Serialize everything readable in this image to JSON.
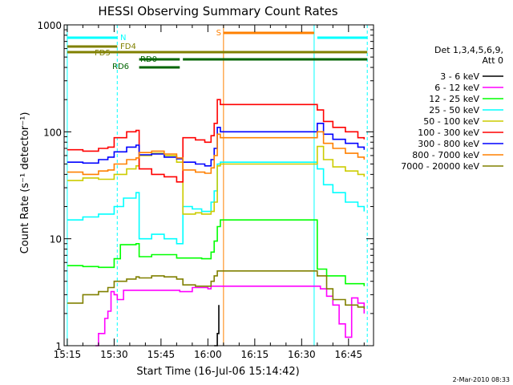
{
  "chart_data": {
    "type": "line",
    "title": "HESSI Observing Summary Count Rates",
    "xlabel": "Start Time (16-Jul-06 15:14:42)",
    "ylabel": "Count Rate (s⁻¹ detector⁻¹)",
    "yscale": "log",
    "xlim": [
      "15:14:42",
      "16:53:00"
    ],
    "ylim": [
      1,
      1000
    ],
    "x_ticks": [
      "15:15",
      "15:30",
      "15:45",
      "16:00",
      "16:15",
      "16:30",
      "16:45"
    ],
    "y_ticks": [
      "1",
      "10",
      "100",
      "1000"
    ],
    "grid": false,
    "legend_position": "right",
    "legend_header": [
      "Det 1,3,4,5,6,9,",
      "Att 0"
    ],
    "footer_date": "2-Mar-2010 08:33",
    "flags": [
      {
        "label": "N",
        "color": "#00ffff",
        "segments": [
          [
            "15:15",
            "15:31"
          ],
          [
            "16:35",
            "16:51"
          ]
        ]
      },
      {
        "label": "FD4",
        "color": "#808000",
        "segments": [
          [
            "15:15",
            "15:31"
          ]
        ]
      },
      {
        "label": "FD5",
        "color": "#808000",
        "segments": [
          [
            "15:15",
            "16:51"
          ]
        ]
      },
      {
        "label": "RD0",
        "color": "#006400",
        "segments": [
          [
            "15:38",
            "15:51"
          ],
          [
            "15:52",
            "16:51"
          ]
        ]
      },
      {
        "label": "RD6",
        "color": "#006400",
        "segments": [
          [
            "15:38",
            "15:51"
          ]
        ]
      },
      {
        "label": "S",
        "color": "#ff8000",
        "segments": [
          [
            "16:05",
            "16:34"
          ]
        ]
      }
    ],
    "series": [
      {
        "name": "3 - 6 keV",
        "color": "#000000",
        "points": [
          [
            "16:02",
            1
          ],
          [
            "16:03",
            1.3
          ],
          [
            "16:03.5",
            2.4
          ]
        ]
      },
      {
        "name": "6 - 12 keV",
        "color": "#ff00ff",
        "points": [
          [
            "15:24",
            1
          ],
          [
            "15:25",
            1.3
          ],
          [
            "15:27",
            1.8
          ],
          [
            "15:28",
            2.1
          ],
          [
            "15:29",
            3.2
          ],
          [
            "15:30",
            3
          ],
          [
            "15:31",
            2.7
          ],
          [
            "15:33",
            3.3
          ],
          [
            "15:38",
            3.3
          ],
          [
            "15:45",
            3.3
          ],
          [
            "15:51",
            3.2
          ],
          [
            "15:55",
            3.5
          ],
          [
            "16:00",
            3.4
          ],
          [
            "16:01",
            3.6
          ],
          [
            "16:36",
            3.4
          ],
          [
            "16:38",
            2.9
          ],
          [
            "16:40",
            2.4
          ],
          [
            "16:42",
            1.6
          ],
          [
            "16:44",
            1.2
          ],
          [
            "16:46",
            2.8
          ],
          [
            "16:48",
            2.5
          ],
          [
            "16:50",
            2
          ]
        ]
      },
      {
        "name": "12 - 25 keV",
        "color": "#00ff00",
        "points": [
          [
            "15:15",
            5.6
          ],
          [
            "15:20",
            5.5
          ],
          [
            "15:25",
            5.4
          ],
          [
            "15:30",
            6.5
          ],
          [
            "15:32",
            8.8
          ],
          [
            "15:37",
            9
          ],
          [
            "15:38",
            6.8
          ],
          [
            "15:42",
            7.1
          ],
          [
            "15:50",
            6.6
          ],
          [
            "15:52",
            6.6
          ],
          [
            "15:58",
            6.5
          ],
          [
            "16:01",
            7.5
          ],
          [
            "16:02",
            9.5
          ],
          [
            "16:03",
            13
          ],
          [
            "16:04",
            15
          ],
          [
            "16:35",
            5.2
          ],
          [
            "16:38",
            4.5
          ],
          [
            "16:44",
            3.8
          ],
          [
            "16:50",
            3.6
          ]
        ]
      },
      {
        "name": "25 - 50 keV",
        "color": "#00ffff",
        "points": [
          [
            "15:15",
            15
          ],
          [
            "15:20",
            16
          ],
          [
            "15:25",
            17
          ],
          [
            "15:28",
            17
          ],
          [
            "15:30",
            20
          ],
          [
            "15:33",
            24
          ],
          [
            "15:37",
            27
          ],
          [
            "15:38",
            10
          ],
          [
            "15:42",
            11
          ],
          [
            "15:46",
            10
          ],
          [
            "15:50",
            9
          ],
          [
            "15:52",
            20
          ],
          [
            "15:55",
            19
          ],
          [
            "15:58",
            18
          ],
          [
            "16:01",
            22
          ],
          [
            "16:02",
            28
          ],
          [
            "16:03",
            50
          ],
          [
            "16:04",
            52
          ],
          [
            "16:35",
            45
          ],
          [
            "16:37",
            32
          ],
          [
            "16:40",
            27
          ],
          [
            "16:44",
            22
          ],
          [
            "16:48",
            20
          ],
          [
            "16:50",
            18
          ]
        ]
      },
      {
        "name": "50 - 100 keV",
        "color": "#cccc00",
        "points": [
          [
            "15:15",
            35
          ],
          [
            "15:20",
            37
          ],
          [
            "15:25",
            36
          ],
          [
            "15:28",
            36
          ],
          [
            "15:30",
            40
          ],
          [
            "15:34",
            45
          ],
          [
            "15:37",
            48
          ],
          [
            "15:38",
            60
          ],
          [
            "15:42",
            63
          ],
          [
            "15:46",
            60
          ],
          [
            "15:50",
            52
          ],
          [
            "15:52",
            17
          ],
          [
            "15:56",
            17.5
          ],
          [
            "15:58",
            17
          ],
          [
            "16:01",
            18
          ],
          [
            "16:02",
            22
          ],
          [
            "16:03",
            48
          ],
          [
            "16:04",
            50
          ],
          [
            "16:35",
            73
          ],
          [
            "16:37",
            55
          ],
          [
            "16:40",
            47
          ],
          [
            "16:44",
            43
          ],
          [
            "16:48",
            40
          ],
          [
            "16:50",
            38
          ]
        ]
      },
      {
        "name": "100 - 300 keV",
        "color": "#ff0000",
        "points": [
          [
            "15:15",
            68
          ],
          [
            "15:20",
            66
          ],
          [
            "15:25",
            70
          ],
          [
            "15:28",
            72
          ],
          [
            "15:30",
            88
          ],
          [
            "15:34",
            100
          ],
          [
            "15:37",
            103
          ],
          [
            "15:38",
            45
          ],
          [
            "15:42",
            40
          ],
          [
            "15:46",
            38
          ],
          [
            "15:50",
            34
          ],
          [
            "15:52",
            88
          ],
          [
            "15:56",
            84
          ],
          [
            "15:59",
            80
          ],
          [
            "16:01",
            92
          ],
          [
            "16:02",
            120
          ],
          [
            "16:03",
            200
          ],
          [
            "16:04",
            180
          ],
          [
            "16:35",
            160
          ],
          [
            "16:37",
            125
          ],
          [
            "16:40",
            110
          ],
          [
            "16:44",
            100
          ],
          [
            "16:48",
            88
          ],
          [
            "16:50",
            85
          ]
        ]
      },
      {
        "name": "300 - 800 keV",
        "color": "#0000ff",
        "points": [
          [
            "15:15",
            52
          ],
          [
            "15:20",
            51
          ],
          [
            "15:25",
            55
          ],
          [
            "15:28",
            58
          ],
          [
            "15:30",
            65
          ],
          [
            "15:34",
            72
          ],
          [
            "15:37",
            75
          ],
          [
            "15:38",
            61
          ],
          [
            "15:42",
            62
          ],
          [
            "15:46",
            58
          ],
          [
            "15:50",
            56
          ],
          [
            "15:52",
            52
          ],
          [
            "15:56",
            50
          ],
          [
            "15:59",
            48
          ],
          [
            "16:01",
            55
          ],
          [
            "16:02",
            70
          ],
          [
            "16:03",
            110
          ],
          [
            "16:04",
            100
          ],
          [
            "16:35",
            120
          ],
          [
            "16:37",
            95
          ],
          [
            "16:40",
            85
          ],
          [
            "16:44",
            78
          ],
          [
            "16:48",
            72
          ],
          [
            "16:50",
            68
          ]
        ]
      },
      {
        "name": "800 - 7000 keV",
        "color": "#ff8000",
        "points": [
          [
            "15:15",
            42
          ],
          [
            "15:20",
            40
          ],
          [
            "15:25",
            43
          ],
          [
            "15:28",
            44
          ],
          [
            "15:30",
            50
          ],
          [
            "15:34",
            55
          ],
          [
            "15:37",
            57
          ],
          [
            "15:38",
            64
          ],
          [
            "15:42",
            66
          ],
          [
            "15:46",
            62
          ],
          [
            "15:50",
            57
          ],
          [
            "15:52",
            44
          ],
          [
            "15:56",
            42
          ],
          [
            "15:59",
            41
          ],
          [
            "16:01",
            46
          ],
          [
            "16:02",
            60
          ],
          [
            "16:03",
            95
          ],
          [
            "16:04",
            88
          ],
          [
            "16:35",
            100
          ],
          [
            "16:37",
            78
          ],
          [
            "16:40",
            70
          ],
          [
            "16:44",
            63
          ],
          [
            "16:48",
            58
          ],
          [
            "16:50",
            55
          ]
        ]
      },
      {
        "name": "7000 - 20000 keV",
        "color": "#808000",
        "points": [
          [
            "15:15",
            2.5
          ],
          [
            "15:20",
            3
          ],
          [
            "15:25",
            3.2
          ],
          [
            "15:28",
            3.5
          ],
          [
            "15:30",
            4
          ],
          [
            "15:34",
            4.2
          ],
          [
            "15:37",
            4.4
          ],
          [
            "15:38",
            4.3
          ],
          [
            "15:42",
            4.5
          ],
          [
            "15:46",
            4.4
          ],
          [
            "15:50",
            4.2
          ],
          [
            "15:52",
            3.7
          ],
          [
            "15:56",
            3.6
          ],
          [
            "15:59",
            3.6
          ],
          [
            "16:01",
            4
          ],
          [
            "16:02",
            4.5
          ],
          [
            "16:03",
            5
          ],
          [
            "16:35",
            4.5
          ],
          [
            "16:38",
            3.4
          ],
          [
            "16:40",
            2.7
          ],
          [
            "16:44",
            2.4
          ],
          [
            "16:48",
            2.3
          ],
          [
            "16:50",
            2.2
          ]
        ]
      }
    ]
  }
}
